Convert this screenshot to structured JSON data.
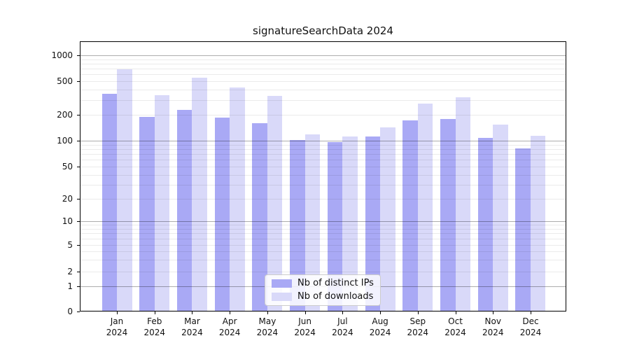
{
  "chart_data": {
    "type": "bar",
    "title": "signatureSearchData 2024",
    "categories": [
      "Jan",
      "Feb",
      "Mar",
      "Apr",
      "May",
      "Jun",
      "Jul",
      "Aug",
      "Sep",
      "Oct",
      "Nov",
      "Dec"
    ],
    "x_sublabel": "2024",
    "series": [
      {
        "name": "Nb of distinct IPs",
        "color": "#a9a9f5",
        "values": [
          355,
          190,
          230,
          186,
          160,
          102,
          96,
          112,
          174,
          180,
          109,
          82
        ]
      },
      {
        "name": "Nb of downloads",
        "color": "#d9d9f9",
        "values": [
          690,
          340,
          550,
          420,
          335,
          120,
          112,
          145,
          272,
          323,
          155,
          115
        ]
      }
    ],
    "yscale": "symlog",
    "yticks": [
      0,
      1,
      2,
      5,
      10,
      20,
      50,
      100,
      200,
      500,
      1000
    ],
    "ylim": [
      0,
      1460
    ],
    "grid": true,
    "legend_position": "lower center",
    "background": "#ffffff"
  }
}
